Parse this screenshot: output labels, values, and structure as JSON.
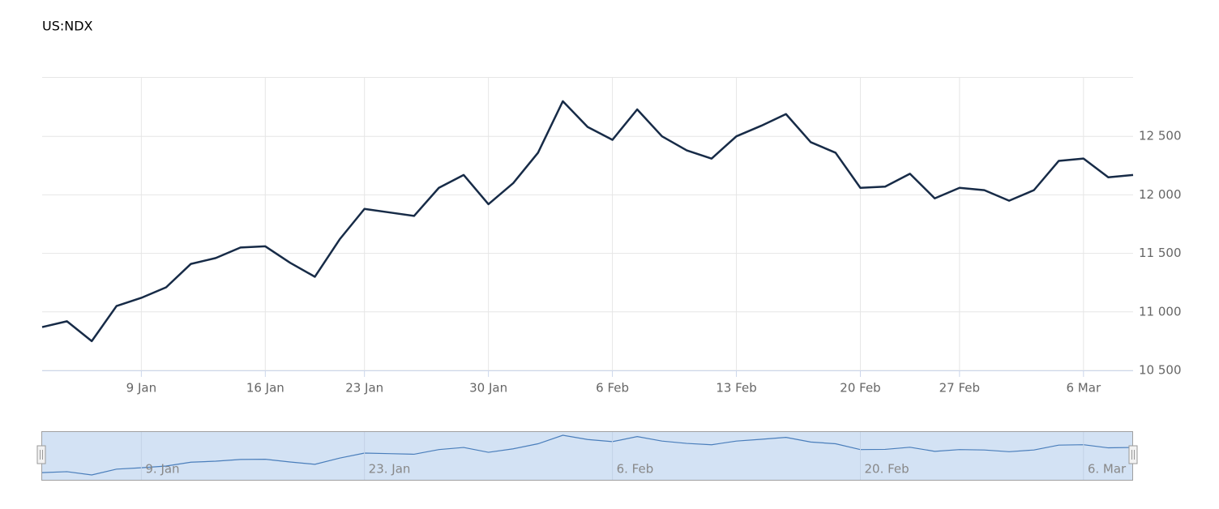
{
  "chart_data": {
    "type": "line",
    "title": "US:NDX",
    "categories": [
      null,
      null,
      null,
      null,
      "9 Jan",
      null,
      null,
      null,
      null,
      "16 Jan",
      null,
      null,
      null,
      "23 Jan",
      null,
      null,
      null,
      null,
      "30 Jan",
      null,
      null,
      null,
      null,
      "6 Feb",
      null,
      null,
      null,
      null,
      "13 Feb",
      null,
      null,
      null,
      null,
      "20 Feb",
      null,
      null,
      null,
      "27 Feb",
      null,
      null,
      null,
      null,
      "6 Mar",
      null,
      null
    ],
    "series": [
      {
        "color": "#172b47",
        "values": [
          10870,
          10920,
          10750,
          11050,
          11120,
          11210,
          11410,
          11460,
          11550,
          11560,
          11420,
          11300,
          11620,
          11880,
          11850,
          11820,
          12060,
          12170,
          11920,
          12100,
          12360,
          12800,
          12580,
          12470,
          12730,
          12500,
          12380,
          12310,
          12500,
          12590,
          12690,
          12450,
          12360,
          12060,
          12070,
          12180,
          11970,
          12060,
          12040,
          11950,
          12040,
          12290,
          12310,
          12150,
          12170
        ]
      }
    ],
    "ylim": [
      10500,
      13000
    ],
    "yticks": [
      {
        "value": 10500,
        "label": "10 500"
      },
      {
        "value": 11000,
        "label": "11 000"
      },
      {
        "value": 11500,
        "label": "11 500"
      },
      {
        "value": 12000,
        "label": "12 000"
      },
      {
        "value": 12500,
        "label": "12 500"
      }
    ],
    "grid": true,
    "navigator_categories": [
      null,
      null,
      null,
      null,
      "9. Jan",
      null,
      null,
      null,
      null,
      null,
      null,
      null,
      null,
      "23. Jan",
      null,
      null,
      null,
      null,
      null,
      null,
      null,
      null,
      null,
      "6. Feb",
      null,
      null,
      null,
      null,
      null,
      null,
      null,
      null,
      null,
      "20. Feb",
      null,
      null,
      null,
      null,
      null,
      null,
      null,
      null,
      "6. Mar",
      null,
      null
    ]
  }
}
